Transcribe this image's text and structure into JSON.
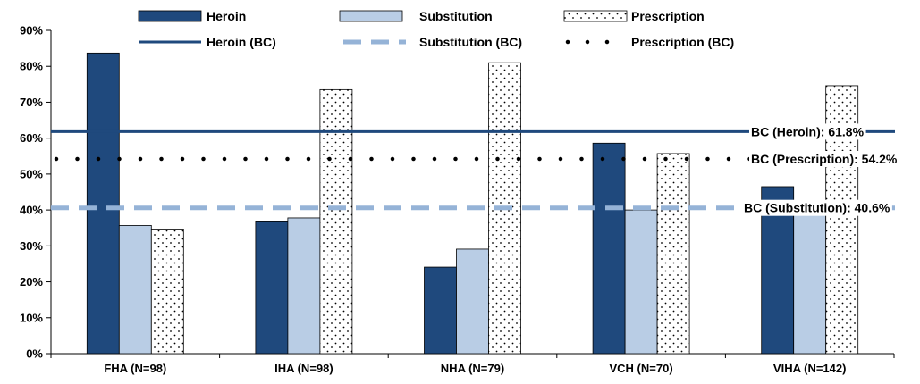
{
  "chart_data": {
    "type": "bar",
    "categories": [
      "FHA (N=98)",
      "IHA (N=98)",
      "NHA (N=79)",
      "VCH (N=70)",
      "VIHA (N=142)"
    ],
    "series": [
      {
        "name": "Heroin",
        "values": [
          83.7,
          36.7,
          24.1,
          58.6,
          46.5
        ],
        "color": "#1f497d",
        "style": "solid"
      },
      {
        "name": "Substitution",
        "values": [
          35.7,
          37.8,
          29.1,
          40.0,
          41.5
        ],
        "color": "#b9cde5",
        "style": "solid"
      },
      {
        "name": "Prescription",
        "values": [
          34.7,
          73.5,
          81.0,
          55.7,
          74.6
        ],
        "color": "#ffffff",
        "style": "dotted-pattern"
      }
    ],
    "reference_lines": [
      {
        "name": "Heroin (BC)",
        "value": 61.8,
        "label": "BC (Heroin): 61.8%",
        "color": "#1f497d",
        "style": "solid"
      },
      {
        "name": "Substitution (BC)",
        "value": 40.6,
        "label": "BC (Substitution): 40.6%",
        "color": "#95b3d7",
        "style": "dashed"
      },
      {
        "name": "Prescription (BC)",
        "value": 54.2,
        "label": "BC (Prescription): 54.2%",
        "color": "#000000",
        "style": "dotted"
      }
    ],
    "y_ticks": [
      "0%",
      "10%",
      "20%",
      "30%",
      "40%",
      "50%",
      "60%",
      "70%",
      "80%",
      "90%"
    ],
    "ylim": [
      0,
      90
    ],
    "title": "",
    "xlabel": "",
    "ylabel": "",
    "grid": false,
    "legend_position": "top"
  }
}
